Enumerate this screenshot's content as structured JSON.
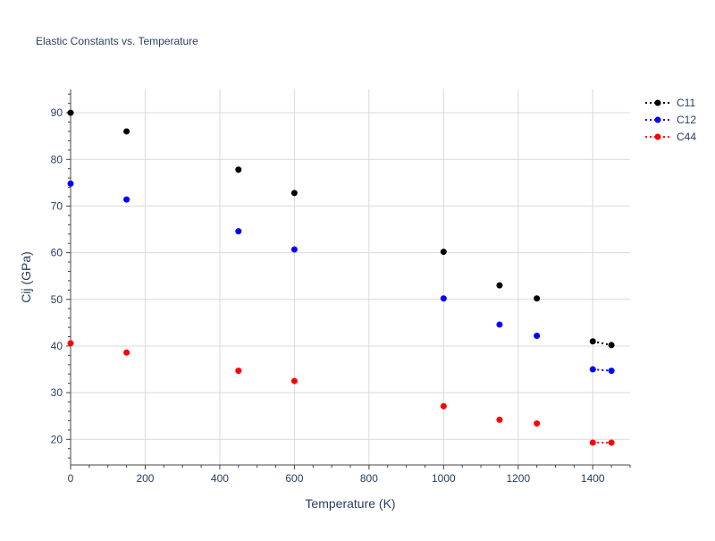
{
  "chart_data": {
    "type": "scatter",
    "title": "Elastic Constants vs. Temperature",
    "xlabel": "Temperature (K)",
    "ylabel": "Cij (GPa)",
    "xlim": [
      0,
      1500
    ],
    "ylim": [
      14.5,
      95
    ],
    "x_ticks": [
      0,
      200,
      400,
      600,
      800,
      1000,
      1200,
      1400
    ],
    "y_ticks": [
      20,
      30,
      40,
      50,
      60,
      70,
      80,
      90
    ],
    "grid": true,
    "legend_position": "top-right",
    "series": [
      {
        "name": "C11",
        "color": "#000000",
        "line_style": "dotted",
        "points": [
          {
            "x": 0,
            "y": 90.0
          },
          {
            "x": 150,
            "y": 86.0
          },
          {
            "x": 450,
            "y": 77.8
          },
          {
            "x": 600,
            "y": 72.8
          },
          {
            "x": 1000,
            "y": 60.2
          },
          {
            "x": 1150,
            "y": 53.0
          },
          {
            "x": 1250,
            "y": 50.2
          },
          {
            "x": 1400,
            "y": 41.0
          },
          {
            "x": 1450,
            "y": 40.2
          }
        ]
      },
      {
        "name": "C12",
        "color": "#0000ff",
        "line_style": "dotted",
        "points": [
          {
            "x": 0,
            "y": 74.8
          },
          {
            "x": 150,
            "y": 71.4
          },
          {
            "x": 450,
            "y": 64.6
          },
          {
            "x": 600,
            "y": 60.7
          },
          {
            "x": 1000,
            "y": 50.2
          },
          {
            "x": 1150,
            "y": 44.6
          },
          {
            "x": 1250,
            "y": 42.2
          },
          {
            "x": 1400,
            "y": 35.0
          },
          {
            "x": 1450,
            "y": 34.7
          }
        ]
      },
      {
        "name": "C44",
        "color": "#ff0000",
        "line_style": "dotted",
        "points": [
          {
            "x": 0,
            "y": 40.6
          },
          {
            "x": 150,
            "y": 38.6
          },
          {
            "x": 450,
            "y": 34.7
          },
          {
            "x": 600,
            "y": 32.5
          },
          {
            "x": 1000,
            "y": 27.1
          },
          {
            "x": 1150,
            "y": 24.2
          },
          {
            "x": 1250,
            "y": 23.4
          },
          {
            "x": 1400,
            "y": 19.3
          },
          {
            "x": 1450,
            "y": 19.3
          }
        ]
      }
    ]
  }
}
